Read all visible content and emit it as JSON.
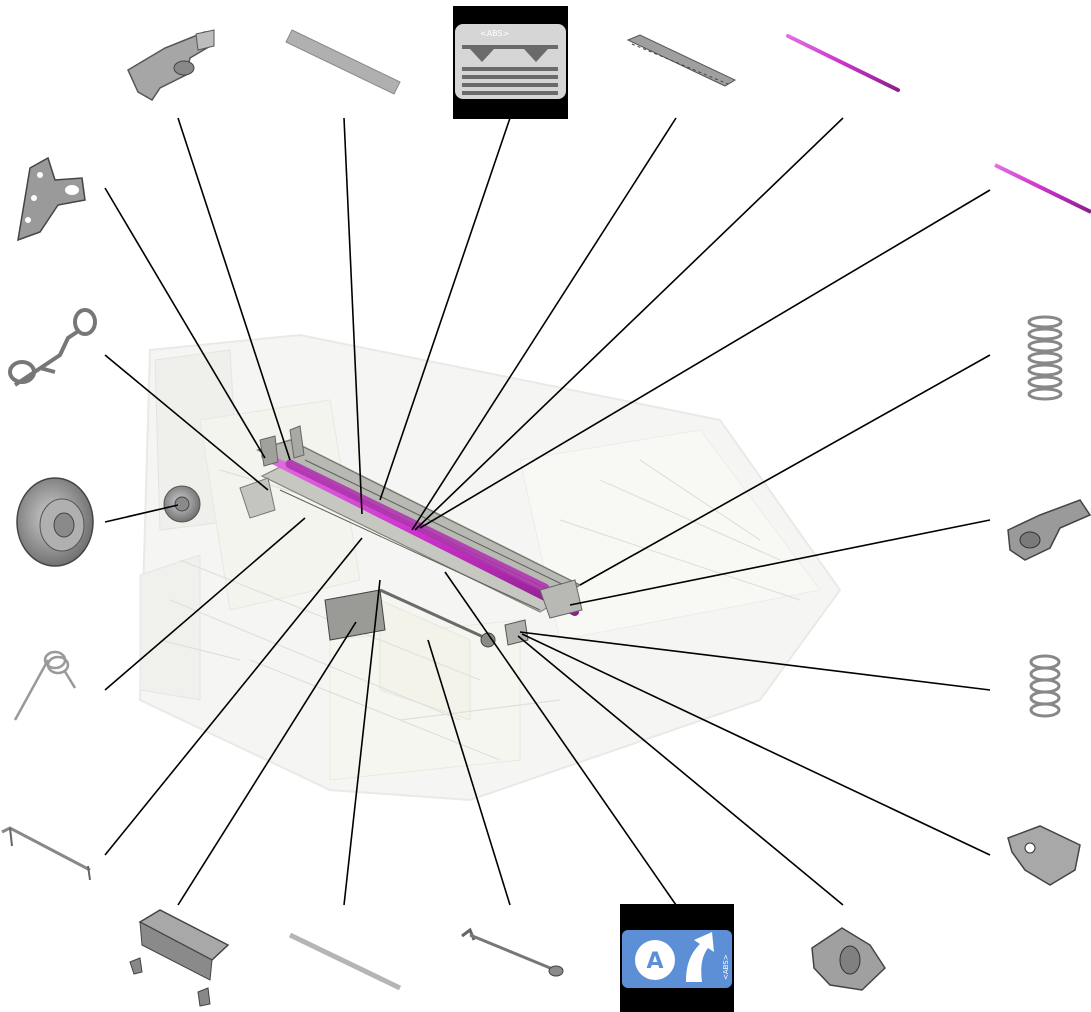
{
  "diagram": {
    "type": "exploded-parts-diagram",
    "callouts": 20,
    "colors": {
      "highlight_rod": "#cc33cc",
      "part_gray": "#9a9a9a",
      "part_dark": "#6f6f6f",
      "leader_line": "#000000",
      "label_blue": "#5c8fd6",
      "label_black": "#000000"
    }
  },
  "labels": {
    "top": {
      "tag": "<ABS>",
      "icons": [
        "triangle-down-icon",
        "triangle-down-icon",
        "horizontal-stripes-icon"
      ]
    },
    "bottom": {
      "letter": "A",
      "tag": "<ABS>",
      "icons": [
        "circle-letter-icon",
        "curved-arrow-icon"
      ]
    }
  },
  "parts": [
    "top-bracket-part",
    "top-flat-bar-part",
    "top-label-part",
    "top-guide-plate-part",
    "top-pink-rod-part",
    "right-pink-rod-part",
    "right-spring-upper-part",
    "right-lever-part",
    "right-spring-lower-part",
    "right-clip-part",
    "bottom-gear-block-part",
    "bottom-blue-label-part",
    "bottom-link-rod-part",
    "bottom-thin-bar-part",
    "bottom-mount-plate-part",
    "left-wire-arm-part",
    "left-torsion-spring-part",
    "left-roller-part",
    "left-hook-link-part",
    "left-plate-part"
  ]
}
